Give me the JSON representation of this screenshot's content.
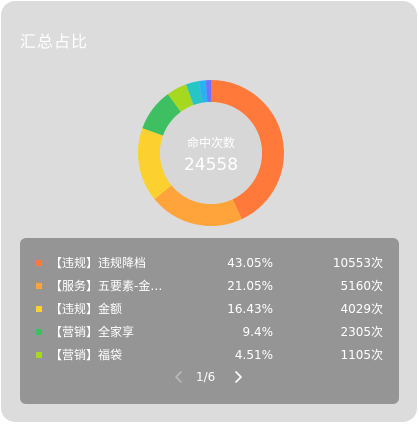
{
  "card": {
    "title": "汇总占比"
  },
  "donut": {
    "center_label": "命中次数",
    "center_value": "24558",
    "hole_color": "#d7d7d7"
  },
  "chart_data": {
    "type": "pie",
    "title": "",
    "slices": [
      {
        "label": "【违规】违规降档",
        "percent": 43.05,
        "value": 10553,
        "color": "#ff7a3a"
      },
      {
        "label": "【服务】五要素-金…",
        "percent": 21.05,
        "value": 5160,
        "color": "#ffa43a"
      },
      {
        "label": "【违规】金额",
        "percent": 16.43,
        "value": 4029,
        "color": "#fcd12f"
      },
      {
        "label": "【营销】全家享",
        "percent": 9.4,
        "value": 2305,
        "color": "#3ec062"
      },
      {
        "label": "【营销】福袋",
        "percent": 4.51,
        "value": 1105,
        "color": "#a6d820"
      },
      {
        "label": "",
        "percent": 2.9,
        "value": null,
        "color": "#26c6c6"
      },
      {
        "label": "",
        "percent": 1.5,
        "value": null,
        "color": "#2bb0f2"
      },
      {
        "label": "",
        "percent": 1.16,
        "value": null,
        "color": "#6b73ff"
      }
    ]
  },
  "legend": {
    "rows": [
      {
        "name": "【违规】违规降档",
        "pct": "43.05%",
        "count": "10553次",
        "color": "#ff7a3a"
      },
      {
        "name": "【服务】五要素-金…",
        "pct": "21.05%",
        "count": "5160次",
        "color": "#ffa43a"
      },
      {
        "name": "【违规】金额",
        "pct": "16.43%",
        "count": "4029次",
        "color": "#fcd12f"
      },
      {
        "name": "【营销】全家享",
        "pct": "9.4%",
        "count": "2305次",
        "color": "#3ec062"
      },
      {
        "name": "【营销】福袋",
        "pct": "4.51%",
        "count": "1105次",
        "color": "#a6d820"
      }
    ]
  },
  "pager": {
    "text": "1/6",
    "prev_icon": "chevron-left-icon",
    "next_icon": "chevron-right-icon",
    "prev_color": "#b8b8b8",
    "next_color": "#ffffff"
  }
}
